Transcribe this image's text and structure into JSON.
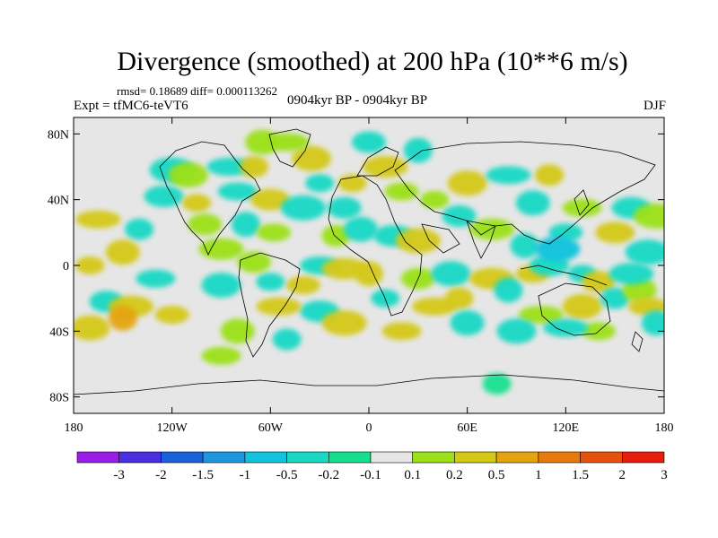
{
  "header": {
    "title": "Divergence (smoothed) at 200 hPa (10**6 m/s)",
    "stats": "rmsd= 0.18689 diff= 0.000113262",
    "expt": "Expt = tfMC6-teVT6",
    "period": "0904kyr BP - 0904kyr BP",
    "season": "DJF"
  },
  "chart_data": {
    "type": "heatmap",
    "title": "Divergence (smoothed) at 200 hPa (10**6 m/s)",
    "subtitle": "0904kyr BP - 0904kyr BP",
    "units": "10**6 m/s",
    "projection": "cylindrical equidistant",
    "xlim": [
      -180,
      180
    ],
    "ylim": [
      -90,
      90
    ],
    "x_ticks": [
      {
        "value": -180,
        "label": "180"
      },
      {
        "value": -120,
        "label": "120W"
      },
      {
        "value": -60,
        "label": "60W"
      },
      {
        "value": 0,
        "label": "0"
      },
      {
        "value": 60,
        "label": "60E"
      },
      {
        "value": 120,
        "label": "120E"
      },
      {
        "value": 180,
        "label": "180"
      }
    ],
    "y_ticks": [
      {
        "value": 80,
        "label": "80N"
      },
      {
        "value": 40,
        "label": "40N"
      },
      {
        "value": 0,
        "label": "0"
      },
      {
        "value": -40,
        "label": "40S"
      },
      {
        "value": -80,
        "label": "80S"
      }
    ],
    "colorbar": {
      "labels": [
        "-3",
        "-2",
        "-1.5",
        "-1",
        "-0.5",
        "-0.2",
        "-0.1",
        "0.1",
        "0.2",
        "0.5",
        "1",
        "1.5",
        "2",
        "3"
      ],
      "colors": [
        "#9b1ee8",
        "#4a2fe0",
        "#1a62dc",
        "#1d96e0",
        "#12c3dd",
        "#19d8c4",
        "#16e08e",
        "#e6e6e6",
        "#9be018",
        "#d4c814",
        "#e4a40e",
        "#e67a0c",
        "#e6520e",
        "#e61e0e"
      ]
    },
    "cells": [
      {
        "lon": -170,
        "lat": 0,
        "value": 0.3
      },
      {
        "lon": -160,
        "lat": -22,
        "value": -0.25
      },
      {
        "lon": -170,
        "lat": -38,
        "value": 0.3
      },
      {
        "lon": -165,
        "lat": 28,
        "value": 0.3
      },
      {
        "lon": -140,
        "lat": 22,
        "value": -0.3
      },
      {
        "lon": -150,
        "lat": 8,
        "value": 0.25
      },
      {
        "lon": -130,
        "lat": -8,
        "value": -0.4
      },
      {
        "lon": -145,
        "lat": -25,
        "value": 0.3
      },
      {
        "lon": -150,
        "lat": -32,
        "value": 0.7
      },
      {
        "lon": -120,
        "lat": -30,
        "value": 0.3
      },
      {
        "lon": -125,
        "lat": 42,
        "value": -0.3
      },
      {
        "lon": -120,
        "lat": 58,
        "value": -0.25
      },
      {
        "lon": -105,
        "lat": 38,
        "value": 0.3
      },
      {
        "lon": -100,
        "lat": 25,
        "value": 0.2
      },
      {
        "lon": -110,
        "lat": 55,
        "value": 0.2
      },
      {
        "lon": -85,
        "lat": 60,
        "value": -0.25
      },
      {
        "lon": -70,
        "lat": 60,
        "value": 0.25
      },
      {
        "lon": -65,
        "lat": 75,
        "value": 0.2
      },
      {
        "lon": -80,
        "lat": 45,
        "value": -0.4
      },
      {
        "lon": -90,
        "lat": 10,
        "value": 0.2
      },
      {
        "lon": -75,
        "lat": 25,
        "value": -0.3
      },
      {
        "lon": -58,
        "lat": 20,
        "value": 0.2
      },
      {
        "lon": -60,
        "lat": 40,
        "value": 0.3
      },
      {
        "lon": -40,
        "lat": 35,
        "value": -0.35
      },
      {
        "lon": -30,
        "lat": 50,
        "value": -0.25
      },
      {
        "lon": -15,
        "lat": 35,
        "value": -0.45
      },
      {
        "lon": -35,
        "lat": 65,
        "value": 0.3
      },
      {
        "lon": -50,
        "lat": 75,
        "value": 0.2
      },
      {
        "lon": -20,
        "lat": 18,
        "value": 0.2
      },
      {
        "lon": -5,
        "lat": 22,
        "value": -0.25
      },
      {
        "lon": -30,
        "lat": 0,
        "value": -0.25
      },
      {
        "lon": -15,
        "lat": -2,
        "value": 0.3
      },
      {
        "lon": 0,
        "lat": -5,
        "value": 0.45
      },
      {
        "lon": -40,
        "lat": -12,
        "value": 0.3
      },
      {
        "lon": -30,
        "lat": -28,
        "value": -0.3
      },
      {
        "lon": -15,
        "lat": -35,
        "value": 0.3
      },
      {
        "lon": -60,
        "lat": -10,
        "value": -0.2
      },
      {
        "lon": -70,
        "lat": 2,
        "value": 0.2
      },
      {
        "lon": -90,
        "lat": -12,
        "value": -0.2
      },
      {
        "lon": -55,
        "lat": -25,
        "value": 0.25
      },
      {
        "lon": -50,
        "lat": -45,
        "value": -0.2
      },
      {
        "lon": -80,
        "lat": -40,
        "value": 0.2
      },
      {
        "lon": -90,
        "lat": -55,
        "value": 0.2
      },
      {
        "lon": 10,
        "lat": 60,
        "value": 0.3
      },
      {
        "lon": 30,
        "lat": 70,
        "value": -0.2
      },
      {
        "lon": 20,
        "lat": 45,
        "value": 0.2
      },
      {
        "lon": 15,
        "lat": 18,
        "value": -0.3
      },
      {
        "lon": 30,
        "lat": 15,
        "value": 0.25
      },
      {
        "lon": 40,
        "lat": 40,
        "value": 0.2
      },
      {
        "lon": 55,
        "lat": 30,
        "value": -0.2
      },
      {
        "lon": 60,
        "lat": 50,
        "value": 0.3
      },
      {
        "lon": 85,
        "lat": 55,
        "value": -0.2
      },
      {
        "lon": 110,
        "lat": 55,
        "value": 0.25
      },
      {
        "lon": 100,
        "lat": 38,
        "value": -0.3
      },
      {
        "lon": 130,
        "lat": 35,
        "value": 0.2
      },
      {
        "lon": 75,
        "lat": 22,
        "value": 0.2
      },
      {
        "lon": 95,
        "lat": 12,
        "value": -0.25
      },
      {
        "lon": 120,
        "lat": 20,
        "value": -0.2
      },
      {
        "lon": 150,
        "lat": 20,
        "value": 0.25
      },
      {
        "lon": 170,
        "lat": 8,
        "value": -0.2
      },
      {
        "lon": 10,
        "lat": -20,
        "value": -0.2
      },
      {
        "lon": 30,
        "lat": -8,
        "value": 0.2
      },
      {
        "lon": 50,
        "lat": -5,
        "value": -0.3
      },
      {
        "lon": 40,
        "lat": -25,
        "value": 0.4
      },
      {
        "lon": 55,
        "lat": -20,
        "value": 0.3
      },
      {
        "lon": 60,
        "lat": -35,
        "value": -0.2
      },
      {
        "lon": 20,
        "lat": -40,
        "value": 0.25
      },
      {
        "lon": 75,
        "lat": -8,
        "value": 0.25
      },
      {
        "lon": 85,
        "lat": -15,
        "value": -0.2
      },
      {
        "lon": 100,
        "lat": -5,
        "value": 0.35
      },
      {
        "lon": 110,
        "lat": 0,
        "value": -0.2
      },
      {
        "lon": 115,
        "lat": 10,
        "value": -0.5
      },
      {
        "lon": 130,
        "lat": -5,
        "value": -0.4
      },
      {
        "lon": 140,
        "lat": -10,
        "value": 0.3
      },
      {
        "lon": 130,
        "lat": -25,
        "value": 0.25
      },
      {
        "lon": 105,
        "lat": -30,
        "value": 0.2
      },
      {
        "lon": 150,
        "lat": -20,
        "value": -0.2
      },
      {
        "lon": 165,
        "lat": -15,
        "value": 0.2
      },
      {
        "lon": 170,
        "lat": -25,
        "value": 0.25
      },
      {
        "lon": 160,
        "lat": -5,
        "value": -0.2
      },
      {
        "lon": 175,
        "lat": -35,
        "value": -0.2
      },
      {
        "lon": 140,
        "lat": -40,
        "value": 0.2
      },
      {
        "lon": 160,
        "lat": 35,
        "value": -0.2
      },
      {
        "lon": 175,
        "lat": 30,
        "value": 0.2
      },
      {
        "lon": -10,
        "lat": 50,
        "value": 0.25
      },
      {
        "lon": 0,
        "lat": 75,
        "value": -0.2
      },
      {
        "lon": 90,
        "lat": -40,
        "value": -0.2
      },
      {
        "lon": 120,
        "lat": -38,
        "value": -0.2
      },
      {
        "lon": 78,
        "lat": -72,
        "value": -0.15
      }
    ]
  }
}
